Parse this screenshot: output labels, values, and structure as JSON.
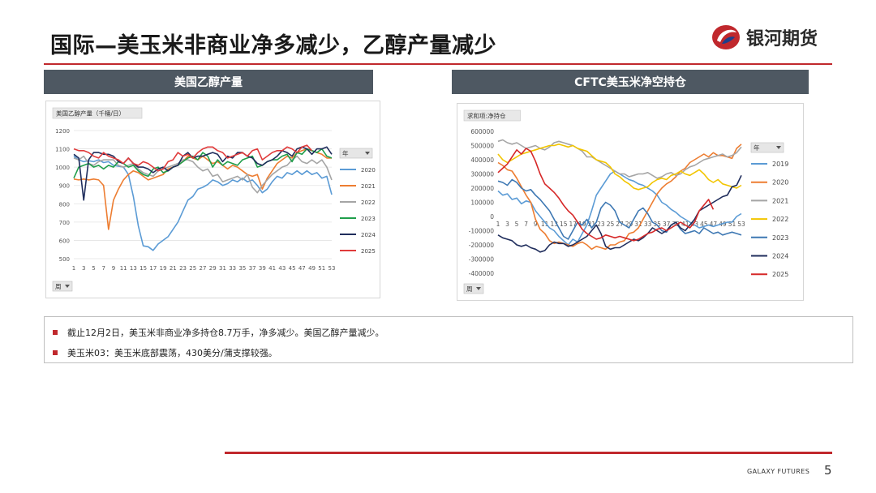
{
  "slide": {
    "title": "国际—美玉米非商业净多减少，乙醇产量减少",
    "brand": "银河期货",
    "footer_brand": "GALAXY FUTURES",
    "page_number": "5",
    "colors": {
      "accent_red": "#c0282d",
      "header_gray": "#4e5862"
    }
  },
  "panels": {
    "left_header": "美国乙醇产量",
    "right_header": "CFTC美玉米净空持仓"
  },
  "notes": [
    "截止12月2日，美玉米非商业净多持仓8.7万手，净多减少。美国乙醇产量减少。",
    "美玉米03：美玉米底部震荡，430美分/蒲支撑较强。"
  ],
  "chart_data": [
    {
      "type": "line",
      "title": "美国乙醇产量（千桶/日）",
      "filter_year_label": "年",
      "filter_week_label": "周",
      "x": [
        1,
        2,
        3,
        4,
        5,
        6,
        7,
        8,
        9,
        10,
        11,
        12,
        13,
        14,
        15,
        16,
        17,
        18,
        19,
        20,
        21,
        22,
        23,
        24,
        25,
        26,
        27,
        28,
        29,
        30,
        31,
        32,
        33,
        34,
        35,
        36,
        37,
        38,
        39,
        40,
        41,
        42,
        43,
        44,
        45,
        46,
        47,
        48,
        49,
        50,
        51,
        52,
        53
      ],
      "x_tick_labels": [
        "1",
        "3",
        "5",
        "7",
        "9",
        "11",
        "13",
        "15",
        "17",
        "19",
        "21",
        "23",
        "25",
        "27",
        "29",
        "31",
        "33",
        "35",
        "37",
        "39",
        "41",
        "43",
        "45",
        "47",
        "49",
        "51",
        "53"
      ],
      "ylim": [
        500,
        1200
      ],
      "y_ticks": [
        500,
        600,
        700,
        800,
        900,
        1000,
        1100,
        1200
      ],
      "grid": true,
      "legend_position": "right",
      "series": [
        {
          "name": "2020",
          "color": "#5b9bd5",
          "values": [
            1060,
            1040,
            1030,
            1035,
            1030,
            1040,
            1025,
            1030,
            1010,
            1005,
            1000,
            960,
            840,
            680,
            570,
            565,
            545,
            580,
            600,
            620,
            660,
            700,
            760,
            820,
            840,
            880,
            890,
            905,
            930,
            920,
            900,
            910,
            930,
            920,
            940,
            920,
            930,
            900,
            860,
            880,
            920,
            950,
            940,
            970,
            960,
            980,
            960,
            980,
            960,
            970,
            940,
            950,
            850
          ]
        },
        {
          "name": "2021",
          "color": "#ed7d31",
          "values": [
            935,
            930,
            935,
            930,
            935,
            930,
            900,
            660,
            820,
            880,
            930,
            960,
            980,
            970,
            950,
            930,
            940,
            950,
            960,
            990,
            1000,
            1010,
            1030,
            1060,
            1050,
            1040,
            1060,
            1040,
            1020,
            1030,
            1010,
            990,
            1010,
            1000,
            980,
            960,
            950,
            960,
            880,
            940,
            980,
            1020,
            1040,
            1060,
            1050,
            1080,
            1090,
            1100,
            1090,
            1080,
            1070,
            1050,
            1050
          ]
        },
        {
          "name": "2022",
          "color": "#a5a5a5",
          "values": [
            1050,
            1040,
            1060,
            1020,
            1010,
            1030,
            1040,
            1040,
            1040,
            1010,
            1000,
            1010,
            1020,
            990,
            970,
            960,
            950,
            980,
            990,
            1000,
            1010,
            1020,
            1040,
            1040,
            1030,
            1000,
            980,
            990,
            950,
            960,
            920,
            930,
            940,
            950,
            930,
            960,
            890,
            860,
            900,
            930,
            960,
            980,
            1000,
            1010,
            1040,
            1060,
            1030,
            1020,
            1040,
            1020,
            1040,
            1000,
            930
          ]
        },
        {
          "name": "2023",
          "color": "#1f9e4b",
          "values": [
            940,
            1000,
            1010,
            1020,
            1000,
            1010,
            990,
            1010,
            1000,
            1030,
            1020,
            1000,
            1010,
            980,
            960,
            950,
            990,
            1000,
            970,
            980,
            1000,
            1010,
            1030,
            1050,
            1060,
            1040,
            1080,
            1060,
            1000,
            1040,
            1010,
            1030,
            1020,
            1010,
            1040,
            1050,
            1060,
            1000,
            1010,
            1030,
            1040,
            1040,
            1060,
            1070,
            1030,
            1080,
            1070,
            1100,
            1090,
            1080,
            1100,
            1060,
            1050
          ]
        },
        {
          "name": "2024",
          "color": "#1f2d5c",
          "values": [
            1070,
            1050,
            820,
            1040,
            1080,
            1080,
            1070,
            1070,
            1060,
            1030,
            1020,
            1050,
            1020,
            1000,
            1000,
            990,
            970,
            990,
            1000,
            980,
            1000,
            1010,
            1060,
            1080,
            1050,
            1060,
            1060,
            1070,
            1080,
            1070,
            1030,
            1060,
            1050,
            1080,
            1080,
            1060,
            1050,
            1020,
            1010,
            1030,
            1040,
            1060,
            1090,
            1080,
            1060,
            1100,
            1110,
            1100,
            1070,
            1100,
            1100,
            1110,
            1070
          ]
        },
        {
          "name": "2025",
          "color": "#e03b3b",
          "values": [
            1100,
            1090,
            1090,
            1080,
            1060,
            1050,
            1080,
            1060,
            1050,
            1040,
            1020,
            1050,
            1020,
            1010,
            1030,
            1020,
            1000,
            980,
            990,
            1030,
            1040,
            1080,
            1060,
            1070,
            1050,
            1080,
            1100,
            1110,
            1110,
            1090,
            1080,
            1050,
            1060,
            1070,
            1080,
            1060,
            1090,
            1100,
            1040,
            1060,
            1080,
            1090,
            1090,
            1110,
            1100,
            1080,
            1110,
            1120,
            1090,
            null,
            null,
            null,
            null
          ]
        }
      ]
    },
    {
      "type": "line",
      "title": "求和项:净持仓",
      "filter_year_label": "年",
      "filter_week_label": "周",
      "x": [
        1,
        2,
        3,
        4,
        5,
        6,
        7,
        8,
        9,
        10,
        11,
        12,
        13,
        14,
        15,
        16,
        17,
        18,
        19,
        20,
        21,
        22,
        23,
        24,
        25,
        26,
        27,
        28,
        29,
        30,
        31,
        32,
        33,
        34,
        35,
        36,
        37,
        38,
        39,
        40,
        41,
        42,
        43,
        44,
        45,
        46,
        47,
        48,
        49,
        50,
        51,
        52,
        53
      ],
      "x_tick_labels": [
        "1",
        "3",
        "5",
        "7",
        "9",
        "11",
        "13",
        "15",
        "17",
        "19",
        "21",
        "23",
        "25",
        "27",
        "29",
        "31",
        "33",
        "35",
        "37",
        "39",
        "41",
        "43",
        "45",
        "47",
        "49",
        "51",
        "53"
      ],
      "ylim": [
        -400000,
        600000
      ],
      "y_ticks": [
        -400000,
        -300000,
        -200000,
        -100000,
        0,
        100000,
        200000,
        300000,
        400000,
        500000,
        600000
      ],
      "grid": false,
      "legend_position": "right",
      "series": [
        {
          "name": "2019",
          "color": "#5b9bd5",
          "values": [
            180000,
            150000,
            160000,
            120000,
            130000,
            90000,
            110000,
            100000,
            40000,
            0,
            -40000,
            -80000,
            -100000,
            -140000,
            -170000,
            -200000,
            -160000,
            -180000,
            -120000,
            -60000,
            40000,
            150000,
            200000,
            250000,
            300000,
            320000,
            300000,
            280000,
            260000,
            250000,
            230000,
            220000,
            200000,
            180000,
            150000,
            100000,
            80000,
            50000,
            30000,
            0,
            -20000,
            -40000,
            -60000,
            -80000,
            -70000,
            -60000,
            -70000,
            -60000,
            -50000,
            -40000,
            -40000,
            0,
            20000
          ]
        },
        {
          "name": "2020",
          "color": "#ed7d31",
          "values": [
            380000,
            360000,
            330000,
            320000,
            270000,
            210000,
            150000,
            100000,
            -20000,
            -90000,
            -120000,
            -170000,
            -190000,
            -180000,
            -190000,
            -200000,
            -210000,
            -190000,
            -180000,
            -200000,
            -230000,
            -210000,
            -220000,
            -230000,
            -200000,
            -200000,
            -180000,
            -170000,
            -120000,
            -110000,
            -80000,
            -20000,
            40000,
            100000,
            160000,
            200000,
            230000,
            250000,
            280000,
            320000,
            340000,
            380000,
            400000,
            420000,
            440000,
            420000,
            450000,
            430000,
            430000,
            420000,
            410000,
            480000,
            510000
          ]
        },
        {
          "name": "2021",
          "color": "#a5a5a5",
          "values": [
            530000,
            540000,
            520000,
            510000,
            520000,
            500000,
            480000,
            490000,
            500000,
            480000,
            470000,
            490000,
            520000,
            530000,
            520000,
            510000,
            500000,
            480000,
            460000,
            420000,
            420000,
            400000,
            380000,
            360000,
            340000,
            320000,
            300000,
            300000,
            280000,
            290000,
            300000,
            300000,
            310000,
            290000,
            270000,
            280000,
            300000,
            310000,
            290000,
            300000,
            330000,
            350000,
            360000,
            380000,
            400000,
            410000,
            420000,
            430000,
            440000,
            420000,
            430000,
            450000,
            490000
          ]
        },
        {
          "name": "2022",
          "color": "#f2c500",
          "values": [
            440000,
            400000,
            380000,
            400000,
            420000,
            440000,
            450000,
            460000,
            470000,
            480000,
            490000,
            500000,
            500000,
            510000,
            500000,
            490000,
            500000,
            480000,
            470000,
            460000,
            430000,
            400000,
            390000,
            380000,
            350000,
            300000,
            280000,
            250000,
            230000,
            200000,
            190000,
            200000,
            210000,
            240000,
            260000,
            270000,
            260000,
            290000,
            300000,
            320000,
            300000,
            290000,
            310000,
            330000,
            300000,
            260000,
            240000,
            260000,
            230000,
            220000,
            210000,
            200000,
            220000
          ]
        },
        {
          "name": "2023",
          "color": "#3e78b3",
          "values": [
            250000,
            240000,
            220000,
            260000,
            240000,
            200000,
            180000,
            190000,
            150000,
            120000,
            80000,
            40000,
            -20000,
            -80000,
            -140000,
            -160000,
            -100000,
            -40000,
            -60000,
            -20000,
            -80000,
            -40000,
            60000,
            100000,
            80000,
            40000,
            -40000,
            -60000,
            -80000,
            -20000,
            40000,
            60000,
            20000,
            -40000,
            -60000,
            -100000,
            -110000,
            -60000,
            -40000,
            -90000,
            -120000,
            -110000,
            -100000,
            -120000,
            -80000,
            -100000,
            -120000,
            -110000,
            -130000,
            -120000,
            -110000,
            -120000,
            -130000
          ]
        },
        {
          "name": "2024",
          "color": "#1f2d5c",
          "values": [
            -130000,
            -150000,
            -160000,
            -170000,
            -200000,
            -210000,
            -200000,
            -220000,
            -230000,
            -250000,
            -240000,
            -200000,
            -180000,
            -190000,
            -190000,
            -210000,
            -200000,
            -180000,
            -160000,
            -140000,
            -100000,
            -60000,
            -120000,
            -210000,
            -230000,
            -220000,
            -220000,
            -200000,
            -180000,
            -160000,
            -170000,
            -150000,
            -120000,
            -80000,
            -100000,
            -120000,
            -100000,
            -60000,
            -40000,
            -80000,
            -100000,
            -60000,
            -20000,
            40000,
            60000,
            80000,
            100000,
            120000,
            140000,
            150000,
            210000,
            220000,
            290000
          ]
        },
        {
          "name": "2025",
          "color": "#d62828",
          "values": [
            310000,
            340000,
            370000,
            420000,
            470000,
            440000,
            480000,
            460000,
            390000,
            300000,
            230000,
            200000,
            170000,
            130000,
            80000,
            40000,
            10000,
            -40000,
            -90000,
            -120000,
            -140000,
            -160000,
            -150000,
            -130000,
            -140000,
            -150000,
            -140000,
            -150000,
            -160000,
            -170000,
            -160000,
            -140000,
            -120000,
            -110000,
            -90000,
            -80000,
            -100000,
            -80000,
            -60000,
            -40000,
            -60000,
            -80000,
            -40000,
            40000,
            80000,
            120000,
            50000,
            null,
            null,
            null,
            null,
            null,
            null
          ]
        }
      ]
    }
  ]
}
